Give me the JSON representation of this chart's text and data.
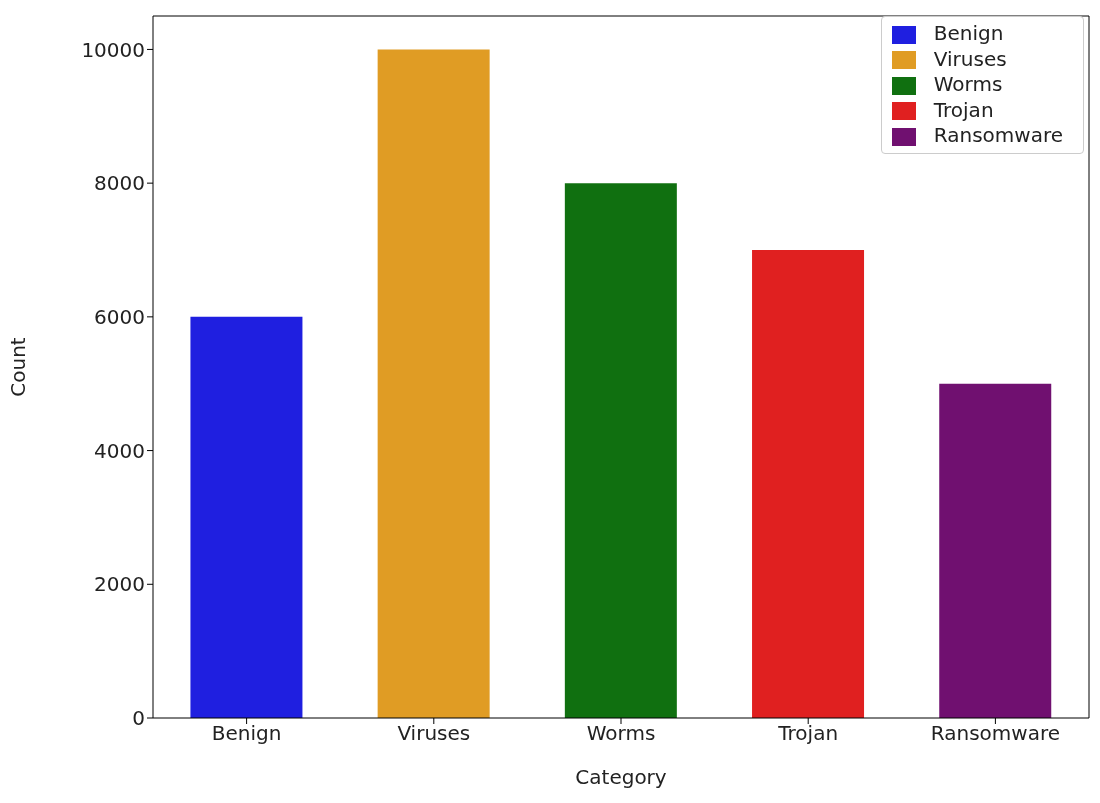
{
  "chart_data": {
    "type": "bar",
    "xlabel": "Category",
    "ylabel": "Count",
    "stacked": true,
    "categories": [
      "Benign",
      "Viruses",
      "Worms",
      "Trojan",
      "Ransomware"
    ],
    "series": [
      {
        "name": "Benign",
        "color": "#1f1fe0",
        "values": [
          6000,
          null,
          null,
          null,
          null
        ]
      },
      {
        "name": "Viruses",
        "color": "#e09c24",
        "values": [
          null,
          10000,
          null,
          null,
          null
        ]
      },
      {
        "name": "Worms",
        "color": "#107010",
        "values": [
          null,
          null,
          8000,
          null,
          null
        ]
      },
      {
        "name": "Trojan",
        "color": "#e02020",
        "values": [
          null,
          null,
          null,
          7000,
          null
        ]
      },
      {
        "name": "Ransomware",
        "color": "#701070",
        "values": [
          null,
          null,
          null,
          null,
          5000
        ]
      }
    ],
    "ylim": [
      0,
      10500
    ],
    "yticks": [
      0,
      2000,
      4000,
      6000,
      8000,
      10000
    ],
    "legend": "top right"
  }
}
